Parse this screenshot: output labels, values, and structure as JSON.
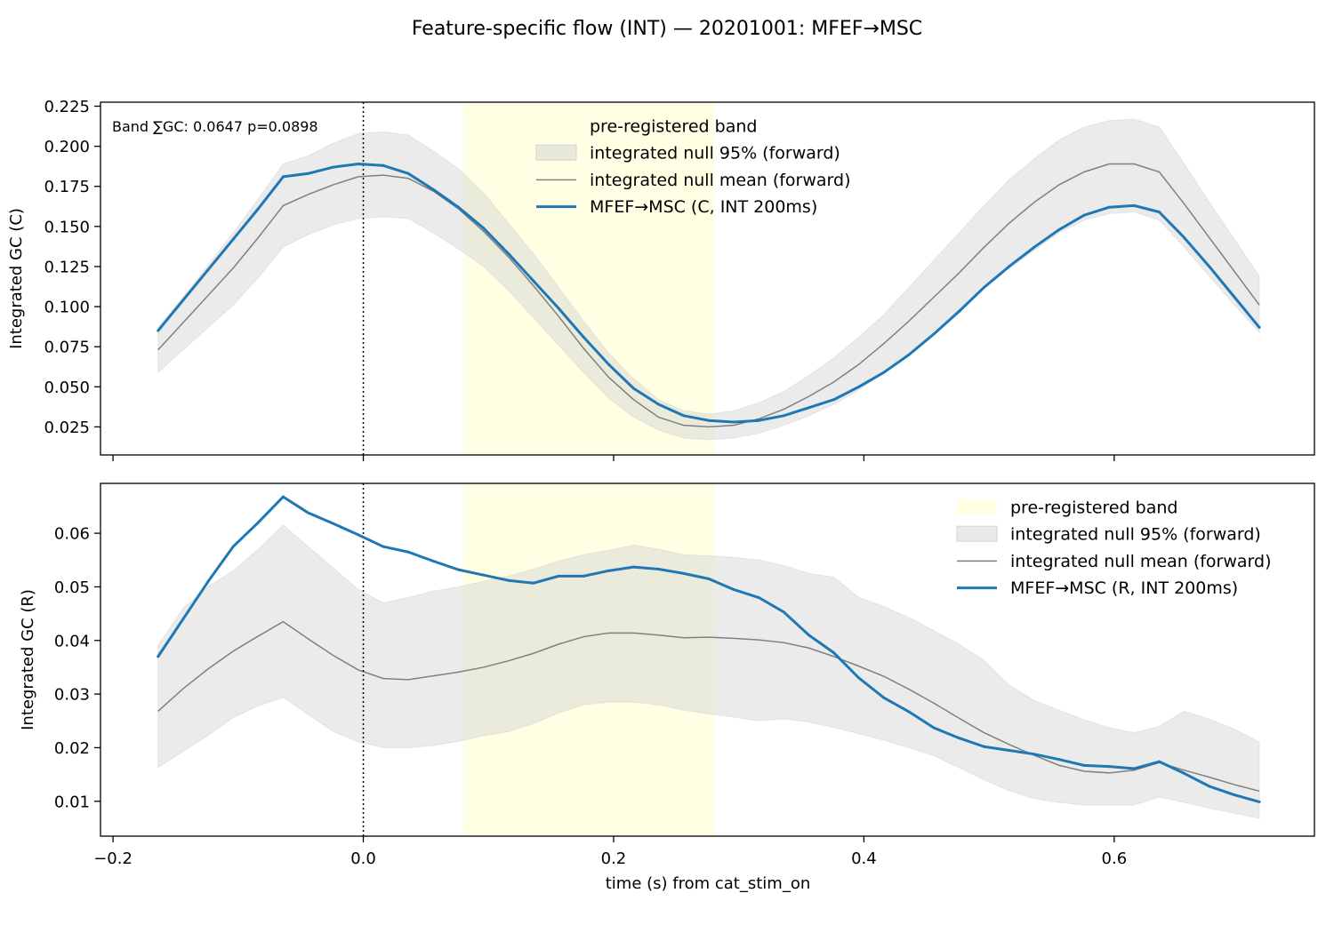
{
  "figure": {
    "suptitle": "Feature-specific flow (INT) — 20201001: MFEF→MSC",
    "xlabel": "time (s) from cat_stim_on"
  },
  "colors": {
    "band": "#ffffe0",
    "null_fill": "#d3d3d3",
    "null_mean": "#808080",
    "series": "#1f77b4",
    "frame": "#000000"
  },
  "chart_data": [
    {
      "type": "line",
      "id": "top",
      "ylabel": "Integrated GC (C)",
      "xlim": [
        -0.21,
        0.76
      ],
      "ylim": [
        0.0075,
        0.2275
      ],
      "xticks": [
        -0.2,
        0.0,
        0.2,
        0.4,
        0.6
      ],
      "xtick_labels_shown": false,
      "yticks": [
        0.025,
        0.05,
        0.075,
        0.1,
        0.125,
        0.15,
        0.175,
        0.2,
        0.225
      ],
      "ytick_labels": [
        "0.025",
        "0.050",
        "0.075",
        "0.100",
        "0.125",
        "0.150",
        "0.175",
        "0.200",
        "0.225"
      ],
      "band": [
        0.08,
        0.28
      ],
      "vline": 0.0,
      "annotation": "Band ∑GC: 0.0647  p=0.0898",
      "legend_position": "upper center",
      "legend": [
        {
          "label": "pre-registered band",
          "kind": "band"
        },
        {
          "label": "integrated null 95% (forward)",
          "kind": "fill"
        },
        {
          "label": "integrated null mean (forward)",
          "kind": "mean"
        },
        {
          "label": "MFEF→MSC (C, INT 200ms)",
          "kind": "series"
        }
      ],
      "x": [
        -0.164,
        -0.144,
        -0.124,
        -0.104,
        -0.084,
        -0.064,
        -0.044,
        -0.024,
        -0.004,
        0.016,
        0.036,
        0.056,
        0.076,
        0.096,
        0.116,
        0.136,
        0.156,
        0.176,
        0.196,
        0.216,
        0.236,
        0.256,
        0.276,
        0.296,
        0.316,
        0.336,
        0.356,
        0.376,
        0.396,
        0.416,
        0.436,
        0.456,
        0.476,
        0.496,
        0.516,
        0.536,
        0.556,
        0.576,
        0.596,
        0.616,
        0.636,
        0.656,
        0.676,
        0.696,
        0.716
      ],
      "series_values": [
        0.085,
        0.104,
        0.123,
        0.142,
        0.161,
        0.181,
        0.183,
        0.187,
        0.189,
        0.188,
        0.183,
        0.173,
        0.162,
        0.149,
        0.133,
        0.116,
        0.099,
        0.081,
        0.064,
        0.049,
        0.039,
        0.032,
        0.029,
        0.028,
        0.029,
        0.032,
        0.037,
        0.042,
        0.05,
        0.059,
        0.07,
        0.083,
        0.097,
        0.112,
        0.125,
        0.137,
        0.148,
        0.157,
        0.162,
        0.163,
        0.159,
        0.143,
        0.125,
        0.106,
        0.087
      ],
      "null_mean": [
        0.073,
        0.09,
        0.107,
        0.124,
        0.143,
        0.163,
        0.17,
        0.176,
        0.181,
        0.182,
        0.18,
        0.172,
        0.161,
        0.147,
        0.131,
        0.113,
        0.094,
        0.074,
        0.056,
        0.042,
        0.031,
        0.026,
        0.025,
        0.026,
        0.03,
        0.036,
        0.044,
        0.053,
        0.064,
        0.077,
        0.091,
        0.106,
        0.121,
        0.137,
        0.152,
        0.165,
        0.176,
        0.184,
        0.189,
        0.189,
        0.184,
        0.164,
        0.143,
        0.122,
        0.101
      ],
      "null_lower": [
        0.059,
        0.073,
        0.087,
        0.101,
        0.118,
        0.137,
        0.145,
        0.151,
        0.155,
        0.156,
        0.155,
        0.146,
        0.136,
        0.125,
        0.11,
        0.093,
        0.076,
        0.059,
        0.043,
        0.031,
        0.023,
        0.018,
        0.017,
        0.018,
        0.021,
        0.026,
        0.032,
        0.039,
        0.048,
        0.059,
        0.071,
        0.085,
        0.098,
        0.112,
        0.124,
        0.135,
        0.146,
        0.154,
        0.158,
        0.159,
        0.154,
        0.137,
        0.119,
        0.101,
        0.084
      ],
      "null_upper": [
        0.087,
        0.106,
        0.126,
        0.146,
        0.167,
        0.189,
        0.194,
        0.202,
        0.208,
        0.209,
        0.207,
        0.197,
        0.186,
        0.171,
        0.152,
        0.133,
        0.112,
        0.091,
        0.071,
        0.055,
        0.042,
        0.035,
        0.033,
        0.035,
        0.04,
        0.047,
        0.057,
        0.068,
        0.081,
        0.095,
        0.112,
        0.129,
        0.146,
        0.163,
        0.179,
        0.192,
        0.204,
        0.212,
        0.216,
        0.217,
        0.212,
        0.189,
        0.165,
        0.142,
        0.119
      ]
    },
    {
      "type": "line",
      "id": "bottom",
      "ylabel": "Integrated GC (R)",
      "xlim": [
        -0.21,
        0.76
      ],
      "ylim": [
        0.0035,
        0.0693
      ],
      "xticks": [
        -0.2,
        0.0,
        0.2,
        0.4,
        0.6
      ],
      "xtick_labels": [
        "−0.2",
        "0.0",
        "0.2",
        "0.4",
        "0.6"
      ],
      "yticks": [
        0.01,
        0.02,
        0.03,
        0.04,
        0.05,
        0.06
      ],
      "ytick_labels": [
        "0.01",
        "0.02",
        "0.03",
        "0.04",
        "0.05",
        "0.06"
      ],
      "band": [
        0.08,
        0.28
      ],
      "vline": 0.0,
      "legend_position": "upper right",
      "legend": [
        {
          "label": "pre-registered band",
          "kind": "band"
        },
        {
          "label": "integrated null 95% (forward)",
          "kind": "fill"
        },
        {
          "label": "integrated null mean (forward)",
          "kind": "mean"
        },
        {
          "label": "MFEF→MSC (R, INT 200ms)",
          "kind": "series"
        }
      ],
      "x": [
        -0.164,
        -0.144,
        -0.124,
        -0.104,
        -0.084,
        -0.064,
        -0.044,
        -0.024,
        -0.004,
        0.016,
        0.036,
        0.056,
        0.076,
        0.096,
        0.116,
        0.136,
        0.156,
        0.176,
        0.196,
        0.216,
        0.236,
        0.256,
        0.276,
        0.296,
        0.316,
        0.336,
        0.356,
        0.376,
        0.396,
        0.416,
        0.436,
        0.456,
        0.476,
        0.496,
        0.516,
        0.536,
        0.556,
        0.576,
        0.596,
        0.616,
        0.636,
        0.656,
        0.676,
        0.696,
        0.716
      ],
      "series_values": [
        0.037,
        0.044,
        0.051,
        0.0575,
        0.062,
        0.0668,
        0.0638,
        0.0618,
        0.0597,
        0.0575,
        0.0565,
        0.0548,
        0.0532,
        0.0522,
        0.0512,
        0.0507,
        0.052,
        0.052,
        0.053,
        0.0537,
        0.0533,
        0.0525,
        0.0515,
        0.0495,
        0.048,
        0.0453,
        0.041,
        0.0377,
        0.033,
        0.0293,
        0.0267,
        0.0237,
        0.0218,
        0.0202,
        0.0195,
        0.0188,
        0.0178,
        0.0167,
        0.0165,
        0.0161,
        0.0174,
        0.0152,
        0.0128,
        0.0112,
        0.0099
      ],
      "null_mean": [
        0.0268,
        0.031,
        0.0347,
        0.038,
        0.0408,
        0.0435,
        0.0403,
        0.0372,
        0.0345,
        0.0329,
        0.0327,
        0.0334,
        0.0341,
        0.035,
        0.0362,
        0.0376,
        0.0393,
        0.0407,
        0.0414,
        0.0414,
        0.041,
        0.0405,
        0.0406,
        0.0404,
        0.0401,
        0.0396,
        0.0386,
        0.037,
        0.0352,
        0.0333,
        0.0309,
        0.0283,
        0.0255,
        0.0228,
        0.0206,
        0.0186,
        0.0167,
        0.0156,
        0.0153,
        0.0158,
        0.0172,
        0.0158,
        0.0145,
        0.0131,
        0.0119
      ],
      "null_lower": [
        0.0163,
        0.0193,
        0.0223,
        0.0256,
        0.0278,
        0.0294,
        0.0262,
        0.023,
        0.0211,
        0.02,
        0.02,
        0.0204,
        0.0212,
        0.0222,
        0.023,
        0.0245,
        0.0265,
        0.028,
        0.0285,
        0.0285,
        0.028,
        0.027,
        0.0263,
        0.0257,
        0.025,
        0.0254,
        0.0248,
        0.0238,
        0.0226,
        0.0214,
        0.02,
        0.0185,
        0.0163,
        0.014,
        0.012,
        0.0105,
        0.0098,
        0.0093,
        0.0093,
        0.0093,
        0.0108,
        0.0098,
        0.0087,
        0.0078,
        0.0068
      ],
      "null_upper": [
        0.039,
        0.046,
        0.05,
        0.053,
        0.057,
        0.0615,
        0.0575,
        0.0535,
        0.0495,
        0.047,
        0.048,
        0.0492,
        0.05,
        0.051,
        0.052,
        0.0533,
        0.0548,
        0.056,
        0.0568,
        0.0578,
        0.057,
        0.056,
        0.0558,
        0.0555,
        0.055,
        0.054,
        0.0525,
        0.0518,
        0.048,
        0.0463,
        0.0443,
        0.0418,
        0.0393,
        0.0363,
        0.0317,
        0.0288,
        0.027,
        0.0252,
        0.0237,
        0.0228,
        0.024,
        0.0268,
        0.0253,
        0.0235,
        0.021
      ]
    }
  ]
}
